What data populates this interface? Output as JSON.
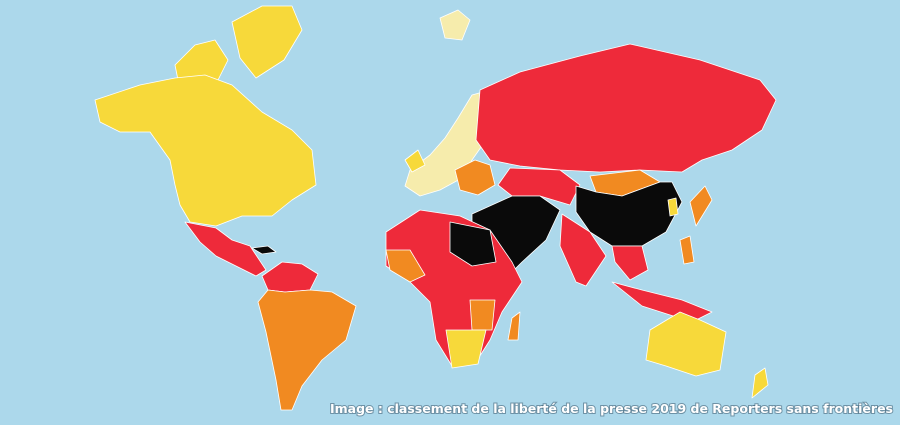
{
  "caption": "Image : classement de la liberté de la presse 2019 de Reporters sans frontières"
}
